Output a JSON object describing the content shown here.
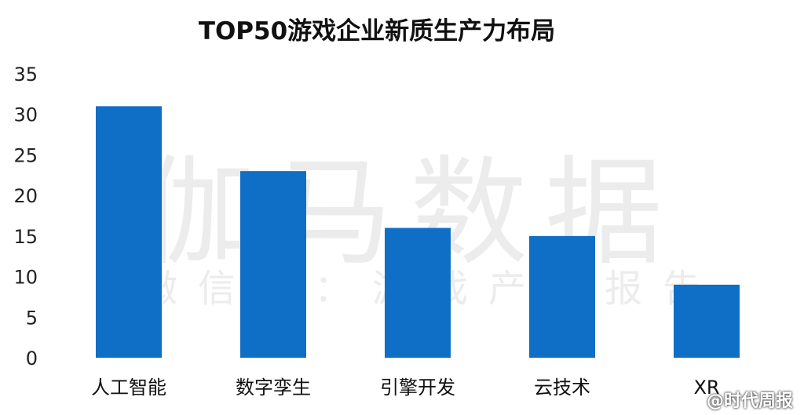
{
  "watermark": {
    "main": "伽马数据",
    "sub": "微信号：游戏产业报告"
  },
  "source_mark": "@时代周报",
  "chart_data": {
    "type": "bar",
    "title": "TOP50游戏企业新质生产力布局",
    "categories": [
      "人工智能",
      "数字孪生",
      "引擎开发",
      "云技术",
      "XR"
    ],
    "values": [
      31,
      23,
      16,
      15,
      9
    ],
    "ylim": [
      0,
      35
    ],
    "yticks": [
      0,
      5,
      10,
      15,
      20,
      25,
      30,
      35
    ],
    "xlabel": "",
    "ylabel": "",
    "grid": false,
    "bar_color": "#0f6fc6"
  }
}
